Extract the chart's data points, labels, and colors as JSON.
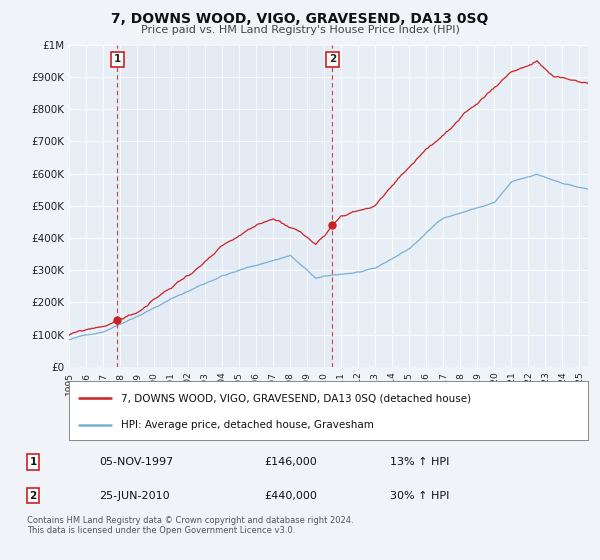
{
  "title": "7, DOWNS WOOD, VIGO, GRAVESEND, DA13 0SQ",
  "subtitle": "Price paid vs. HM Land Registry's House Price Index (HPI)",
  "bg_color": "#f0f4f9",
  "plot_bg_color": "#e8eef6",
  "grid_color": "#ffffff",
  "red_line_label": "7, DOWNS WOOD, VIGO, GRAVESEND, DA13 0SQ (detached house)",
  "blue_line_label": "HPI: Average price, detached house, Gravesham",
  "sale1_date": "05-NOV-1997",
  "sale1_price": "£146,000",
  "sale1_hpi": "13% ↑ HPI",
  "sale1_year": 1997.85,
  "sale1_value": 146000,
  "sale2_date": "25-JUN-2010",
  "sale2_price": "£440,000",
  "sale2_hpi": "30% ↑ HPI",
  "sale2_year": 2010.48,
  "sale2_value": 440000,
  "footer1": "Contains HM Land Registry data © Crown copyright and database right 2024.",
  "footer2": "This data is licensed under the Open Government Licence v3.0.",
  "xmin": 1995.0,
  "xmax": 2025.5,
  "ymin": 0,
  "ymax": 1000000,
  "yticks": [
    0,
    100000,
    200000,
    300000,
    400000,
    500000,
    600000,
    700000,
    800000,
    900000,
    1000000
  ],
  "ytick_labels": [
    "£0",
    "£100K",
    "£200K",
    "£300K",
    "£400K",
    "£500K",
    "£600K",
    "£700K",
    "£800K",
    "£900K",
    "£1M"
  ]
}
